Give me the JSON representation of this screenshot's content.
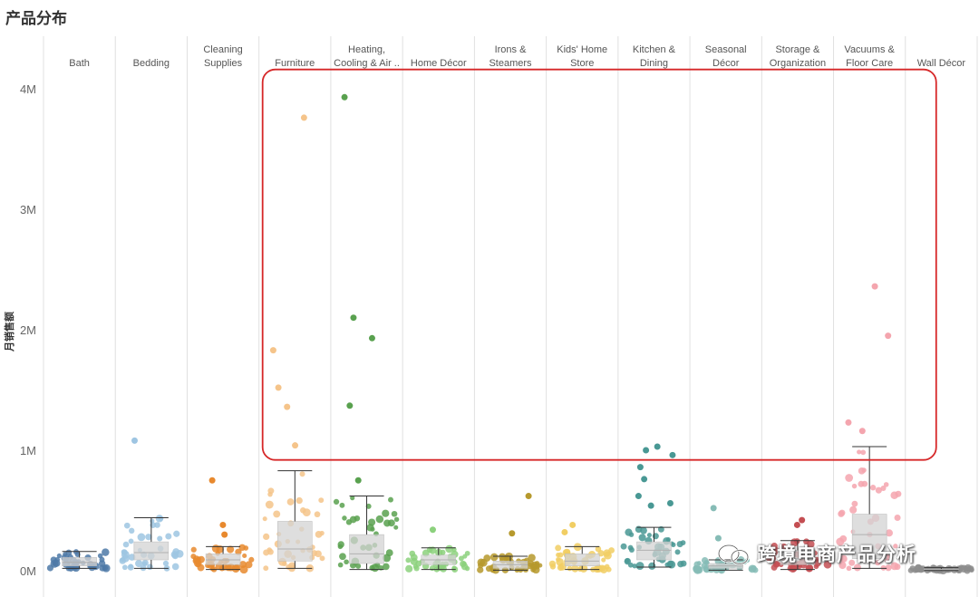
{
  "page_title": "产品分布",
  "watermark": {
    "text": "跨境电商产品分析"
  },
  "colors": {
    "box_fill": "#d3d3d3",
    "whisker": "#333333",
    "divider": "#e0e0e0",
    "tick_label": "#666666",
    "highlight": "#d62728"
  },
  "chart_data": {
    "type": "scatter",
    "subtype": "jittered strip plot with box-and-whisker per category",
    "title": "产品分布",
    "ylabel": "月销售额",
    "xlabel": "",
    "ylim": [
      0,
      4200000
    ],
    "yticks": [
      0,
      1000000,
      2000000,
      3000000,
      4000000
    ],
    "ytick_labels": [
      "0M",
      "1M",
      "2M",
      "3M",
      "4M"
    ],
    "grid": false,
    "legend": "none",
    "highlight_region": {
      "categories": [
        "Furniture",
        "Vacuums & Floor Care"
      ],
      "y_range": [
        1100000,
        4100000
      ],
      "color": "#d62728"
    },
    "categories": [
      {
        "name": "Bath",
        "label": [
          "Bath"
        ],
        "color": "#4e79a7",
        "box": {
          "whisker_low": 20000,
          "q1": 40000,
          "median": 70000,
          "q3": 110000,
          "whisker_high": 160000
        },
        "outliers": []
      },
      {
        "name": "Bedding",
        "label": [
          "Bedding"
        ],
        "color": "#9ec5e2",
        "box": {
          "whisker_low": 20000,
          "q1": 90000,
          "median": 150000,
          "q3": 240000,
          "whisker_high": 440000
        },
        "outliers": [
          1080000
        ]
      },
      {
        "name": "Cleaning Supplies",
        "label": [
          "Cleaning",
          "Supplies"
        ],
        "color": "#e8892e",
        "box": {
          "whisker_low": 10000,
          "q1": 50000,
          "median": 90000,
          "q3": 140000,
          "whisker_high": 200000
        },
        "outliers": [
          750000,
          380000,
          300000
        ]
      },
      {
        "name": "Furniture",
        "label": [
          "Furniture"
        ],
        "color": "#f5c48a",
        "box": {
          "whisker_low": 20000,
          "q1": 80000,
          "median": 180000,
          "q3": 410000,
          "whisker_high": 830000
        },
        "outliers": [
          3760000,
          1830000,
          1520000,
          1360000,
          1040000
        ]
      },
      {
        "name": "Heating, Cooling & Air Quality",
        "label": [
          "Heating,",
          "Cooling & Air .."
        ],
        "color": "#59a14f",
        "box": {
          "whisker_low": 10000,
          "q1": 60000,
          "median": 140000,
          "q3": 300000,
          "whisker_high": 620000
        },
        "outliers": [
          3930000,
          2100000,
          1930000,
          1370000,
          750000
        ]
      },
      {
        "name": "Home Décor",
        "label": [
          "Home Décor"
        ],
        "color": "#8cd17d",
        "box": {
          "whisker_low": 10000,
          "q1": 50000,
          "median": 90000,
          "q3": 130000,
          "whisker_high": 190000
        },
        "outliers": [
          340000
        ]
      },
      {
        "name": "Irons & Steamers",
        "label": [
          "Irons &",
          "Steamers"
        ],
        "color": "#b6992d",
        "box": {
          "whisker_low": 5000,
          "q1": 20000,
          "median": 50000,
          "q3": 80000,
          "whisker_high": 120000
        },
        "outliers": [
          620000,
          310000
        ]
      },
      {
        "name": "Kids' Home Store",
        "label": [
          "Kids' Home",
          "Store"
        ],
        "color": "#f1ce63",
        "box": {
          "whisker_low": 10000,
          "q1": 40000,
          "median": 80000,
          "q3": 140000,
          "whisker_high": 200000
        },
        "outliers": [
          380000,
          320000
        ]
      },
      {
        "name": "Kitchen & Dining",
        "label": [
          "Kitchen &",
          "Dining"
        ],
        "color": "#499894",
        "box": {
          "whisker_low": 30000,
          "q1": 90000,
          "median": 170000,
          "q3": 240000,
          "whisker_high": 360000
        },
        "outliers": [
          1030000,
          1000000,
          960000,
          860000,
          760000,
          620000,
          560000,
          540000
        ]
      },
      {
        "name": "Seasonal Décor",
        "label": [
          "Seasonal",
          "Décor"
        ],
        "color": "#86bcb6",
        "box": {
          "whisker_low": 5000,
          "q1": 20000,
          "median": 40000,
          "q3": 60000,
          "whisker_high": 90000
        },
        "outliers": [
          520000,
          270000
        ]
      },
      {
        "name": "Storage & Organization",
        "label": [
          "Storage &",
          "Organization"
        ],
        "color": "#c44e52",
        "box": {
          "whisker_low": 10000,
          "q1": 50000,
          "median": 100000,
          "q3": 170000,
          "whisker_high": 250000
        },
        "outliers": [
          420000,
          380000
        ]
      },
      {
        "name": "Vacuums & Floor Care",
        "label": [
          "Vacuums &",
          "Floor Care"
        ],
        "color": "#f4a5ae",
        "box": {
          "whisker_low": 20000,
          "q1": 100000,
          "median": 300000,
          "q3": 470000,
          "whisker_high": 1030000
        },
        "outliers": [
          2360000,
          1950000,
          1230000,
          1160000
        ]
      },
      {
        "name": "Wall Décor",
        "label": [
          "Wall Décor"
        ],
        "color": "#8c8c8c",
        "box": {
          "whisker_low": 2000,
          "q1": 5000,
          "median": 10000,
          "q3": 15000,
          "whisker_high": 25000
        },
        "outliers": []
      }
    ]
  }
}
